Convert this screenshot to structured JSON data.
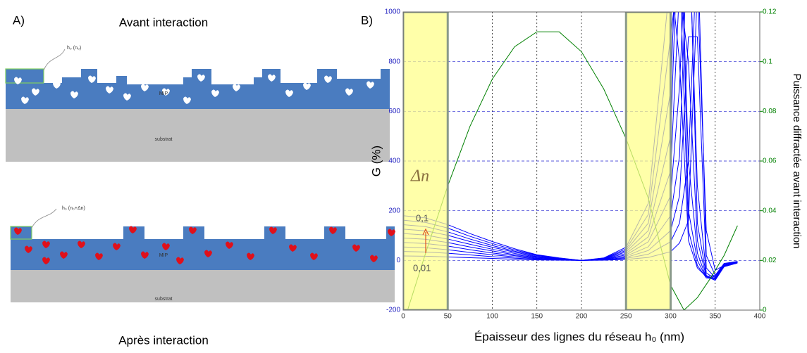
{
  "panel_a": {
    "label": "A)",
    "top_title": "Avant interaction",
    "top_height_label": "h₀ (n₀)",
    "top_layer": "MIP",
    "top_substrate": "substrat",
    "bottom_height_label": "h₀ (n₀+Δn)",
    "bottom_layer": "MIP",
    "bottom_substrate": "substrat",
    "bottom_title": "Après interaction"
  },
  "chart_data": {
    "type": "line",
    "panel_label": "B)",
    "x_label": "Épaisseur des lignes du réseau h₀ (nm)",
    "y_label": "G (%)",
    "y2_label": "Puissance diffractée avant interaction",
    "annotations": [
      "Δn",
      "0,1",
      "0,01"
    ],
    "xlim": [
      0,
      400
    ],
    "xticks": [
      0,
      50,
      100,
      150,
      200,
      250,
      300,
      350,
      400
    ],
    "ylim": [
      -200,
      1000
    ],
    "yticks": [
      -200,
      0,
      200,
      400,
      600,
      800,
      1000
    ],
    "y2lim": [
      0,
      0.12
    ],
    "y2ticks": [
      0,
      0.02,
      0.04,
      0.06,
      0.08,
      0.1,
      0.12
    ],
    "highlight_ranges": [
      [
        0,
        50
      ],
      [
        250,
        300
      ]
    ],
    "highlight_color": "#ffff88",
    "grid": true,
    "x": [
      0,
      25,
      50,
      75,
      100,
      125,
      150,
      175,
      200,
      225,
      250,
      275,
      300,
      310,
      320,
      330,
      340,
      350,
      360,
      375
    ],
    "series": [
      {
        "color": "#0000ff",
        "values": [
          18,
          17,
          14,
          11,
          8,
          5,
          2,
          1,
          0,
          1,
          4,
          12,
          35,
          70,
          160,
          1100,
          120,
          -40,
          -20,
          -8
        ]
      },
      {
        "color": "#0000ff",
        "values": [
          36,
          34,
          29,
          22,
          15,
          9,
          5,
          2,
          0,
          2,
          8,
          25,
          75,
          150,
          400,
          1300,
          20,
          -60,
          -25,
          -10
        ]
      },
      {
        "color": "#0000ff",
        "values": [
          54,
          51,
          43,
          32,
          23,
          14,
          7,
          3,
          0,
          3,
          12,
          40,
          120,
          260,
          900,
          900,
          -30,
          -70,
          -25,
          -10
        ]
      },
      {
        "color": "#0000ff",
        "values": [
          72,
          68,
          58,
          43,
          30,
          19,
          9,
          4,
          0,
          4,
          17,
          55,
          180,
          420,
          1400,
          300,
          -50,
          -75,
          -25,
          -10
        ]
      },
      {
        "color": "#0000ff",
        "values": [
          90,
          85,
          72,
          54,
          38,
          23,
          12,
          5,
          0,
          5,
          22,
          75,
          260,
          700,
          1500,
          150,
          -60,
          -80,
          -25,
          -10
        ]
      },
      {
        "color": "#0000ff",
        "values": [
          108,
          102,
          86,
          65,
          45,
          28,
          14,
          6,
          0,
          6,
          28,
          95,
          360,
          1100,
          800,
          80,
          -65,
          -80,
          -22,
          -8
        ]
      },
      {
        "color": "#0000ff",
        "values": [
          126,
          119,
          101,
          76,
          53,
          33,
          16,
          7,
          0,
          7,
          34,
          120,
          500,
          1500,
          400,
          30,
          -70,
          -75,
          -20,
          -8
        ]
      },
      {
        "color": "#0000ff",
        "values": [
          144,
          136,
          115,
          86,
          60,
          37,
          19,
          8,
          0,
          8,
          40,
          150,
          680,
          1600,
          200,
          0,
          -70,
          -70,
          -18,
          -6
        ]
      },
      {
        "color": "#0000ff",
        "values": [
          162,
          153,
          130,
          97,
          68,
          42,
          21,
          9,
          0,
          9,
          46,
          185,
          900,
          1200,
          120,
          -20,
          -70,
          -65,
          -15,
          -5
        ]
      },
      {
        "color": "#0000ff",
        "values": [
          180,
          171,
          144,
          108,
          76,
          47,
          23,
          10,
          0,
          10,
          53,
          230,
          1150,
          800,
          80,
          -30,
          -65,
          -60,
          -12,
          -4
        ]
      },
      {
        "color": "#008000",
        "axis": "y2",
        "x": [
          5,
          25,
          50,
          75,
          100,
          125,
          150,
          175,
          200,
          225,
          250,
          275,
          300,
          315,
          330,
          345,
          360,
          375
        ],
        "values": [
          0,
          0.0227,
          0.05,
          0.074,
          0.093,
          0.106,
          0.112,
          0.112,
          0.104,
          0.089,
          0.069,
          0.045,
          0.01,
          0,
          0.005,
          0.013,
          0.022,
          0.034
        ]
      }
    ]
  }
}
